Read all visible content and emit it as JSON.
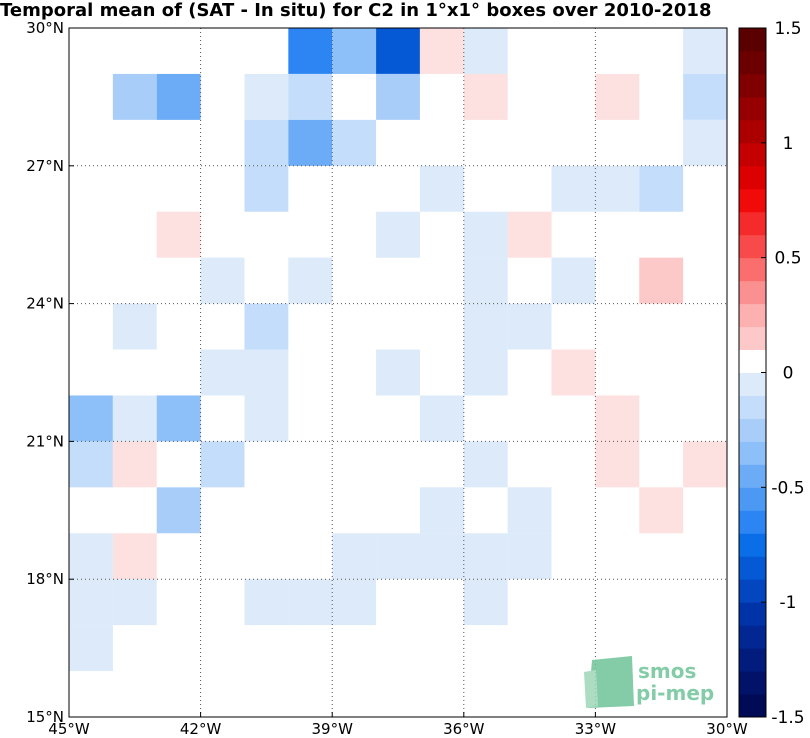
{
  "chart_data": {
    "type": "heatmap",
    "title": "Temporal mean of (SAT - In situ) for C2 in 1°x1° boxes over 2010-2018",
    "xlim": [
      -45,
      -30
    ],
    "ylim": [
      15,
      30
    ],
    "x_ticks": [
      -45,
      -42,
      -39,
      -36,
      -33,
      -30
    ],
    "x_tick_labels": [
      "45°W",
      "42°W",
      "39°W",
      "36°W",
      "33°W",
      "30°W"
    ],
    "y_ticks": [
      15,
      18,
      21,
      24,
      27,
      30
    ],
    "y_tick_labels": [
      "15°N",
      "18°N",
      "21°N",
      "24°N",
      "27°N",
      "30°N"
    ],
    "grid": true,
    "colorbar": {
      "range": [
        -1.5,
        1.5
      ],
      "step": 0.1,
      "ticks": [
        -1.5,
        -1,
        -0.5,
        0,
        0.5,
        1,
        1.5
      ],
      "tick_labels": [
        "-1.5",
        "-1",
        "-0.5",
        "0",
        "0.5",
        "1",
        "1.5"
      ],
      "placement": "right"
    },
    "cell_size_deg": 1,
    "cells": [
      {
        "lon": -40,
        "lat": 29,
        "value": -0.7
      },
      {
        "lon": -39,
        "lat": 29,
        "value": -0.4
      },
      {
        "lon": -38,
        "lat": 29,
        "value": -0.9
      },
      {
        "lon": -37,
        "lat": 29,
        "value": 0.1
      },
      {
        "lon": -36,
        "lat": 29,
        "value": -0.1
      },
      {
        "lon": -31,
        "lat": 29,
        "value": -0.1
      },
      {
        "lon": -44,
        "lat": 28,
        "value": -0.3
      },
      {
        "lon": -43,
        "lat": 28,
        "value": -0.5
      },
      {
        "lon": -41,
        "lat": 28,
        "value": -0.1
      },
      {
        "lon": -40,
        "lat": 28,
        "value": -0.2
      },
      {
        "lon": -38,
        "lat": 28,
        "value": -0.3
      },
      {
        "lon": -36,
        "lat": 28,
        "value": 0.1
      },
      {
        "lon": -33,
        "lat": 28,
        "value": 0.1
      },
      {
        "lon": -31,
        "lat": 28,
        "value": -0.2
      },
      {
        "lon": -41,
        "lat": 27,
        "value": -0.2
      },
      {
        "lon": -40,
        "lat": 27,
        "value": -0.5
      },
      {
        "lon": -39,
        "lat": 27,
        "value": -0.2
      },
      {
        "lon": -31,
        "lat": 27,
        "value": -0.1
      },
      {
        "lon": -41,
        "lat": 26,
        "value": -0.2
      },
      {
        "lon": -37,
        "lat": 26,
        "value": -0.1
      },
      {
        "lon": -34,
        "lat": 26,
        "value": -0.1
      },
      {
        "lon": -33,
        "lat": 26,
        "value": -0.1
      },
      {
        "lon": -32,
        "lat": 26,
        "value": -0.2
      },
      {
        "lon": -43,
        "lat": 25,
        "value": 0.1
      },
      {
        "lon": -38,
        "lat": 25,
        "value": -0.1
      },
      {
        "lon": -36,
        "lat": 25,
        "value": -0.1
      },
      {
        "lon": -35,
        "lat": 25,
        "value": 0.1
      },
      {
        "lon": -42,
        "lat": 24,
        "value": -0.1
      },
      {
        "lon": -40,
        "lat": 24,
        "value": -0.1
      },
      {
        "lon": -36,
        "lat": 24,
        "value": -0.1
      },
      {
        "lon": -34,
        "lat": 24,
        "value": -0.1
      },
      {
        "lon": -32,
        "lat": 24,
        "value": 0.2
      },
      {
        "lon": -44,
        "lat": 23,
        "value": -0.1
      },
      {
        "lon": -41,
        "lat": 23,
        "value": -0.2
      },
      {
        "lon": -36,
        "lat": 23,
        "value": -0.1
      },
      {
        "lon": -35,
        "lat": 23,
        "value": -0.1
      },
      {
        "lon": -42,
        "lat": 22,
        "value": -0.1
      },
      {
        "lon": -41,
        "lat": 22,
        "value": -0.1
      },
      {
        "lon": -38,
        "lat": 22,
        "value": -0.1
      },
      {
        "lon": -36,
        "lat": 22,
        "value": -0.1
      },
      {
        "lon": -34,
        "lat": 22,
        "value": 0.1
      },
      {
        "lon": -45,
        "lat": 21,
        "value": -0.4
      },
      {
        "lon": -44,
        "lat": 21,
        "value": -0.1
      },
      {
        "lon": -43,
        "lat": 21,
        "value": -0.4
      },
      {
        "lon": -41,
        "lat": 21,
        "value": -0.1
      },
      {
        "lon": -37,
        "lat": 21,
        "value": -0.1
      },
      {
        "lon": -33,
        "lat": 21,
        "value": 0.1
      },
      {
        "lon": -45,
        "lat": 20,
        "value": -0.2
      },
      {
        "lon": -44,
        "lat": 20,
        "value": 0.1
      },
      {
        "lon": -42,
        "lat": 20,
        "value": -0.2
      },
      {
        "lon": -36,
        "lat": 20,
        "value": -0.1
      },
      {
        "lon": -33,
        "lat": 20,
        "value": 0.1
      },
      {
        "lon": -31,
        "lat": 20,
        "value": 0.1
      },
      {
        "lon": -43,
        "lat": 19,
        "value": -0.3
      },
      {
        "lon": -37,
        "lat": 19,
        "value": -0.1
      },
      {
        "lon": -35,
        "lat": 19,
        "value": -0.1
      },
      {
        "lon": -32,
        "lat": 19,
        "value": 0.1
      },
      {
        "lon": -45,
        "lat": 18,
        "value": -0.1
      },
      {
        "lon": -44,
        "lat": 18,
        "value": 0.1
      },
      {
        "lon": -39,
        "lat": 18,
        "value": -0.1
      },
      {
        "lon": -38,
        "lat": 18,
        "value": -0.1
      },
      {
        "lon": -37,
        "lat": 18,
        "value": -0.1
      },
      {
        "lon": -36,
        "lat": 18,
        "value": -0.1
      },
      {
        "lon": -35,
        "lat": 18,
        "value": -0.1
      },
      {
        "lon": -45,
        "lat": 17,
        "value": -0.1
      },
      {
        "lon": -44,
        "lat": 17,
        "value": -0.1
      },
      {
        "lon": -41,
        "lat": 17,
        "value": -0.1
      },
      {
        "lon": -40,
        "lat": 17,
        "value": -0.1
      },
      {
        "lon": -39,
        "lat": 17,
        "value": -0.1
      },
      {
        "lon": -36,
        "lat": 17,
        "value": -0.1
      },
      {
        "lon": -45,
        "lat": 16,
        "value": -0.1
      }
    ]
  },
  "logo": {
    "line1": "smos",
    "line2": "pi-mep"
  },
  "colors": {
    "negative_scale": [
      "#dceaf9",
      "#c3ddfb",
      "#a8cdf9",
      "#8dbff8",
      "#6cacf6",
      "#4c99f4",
      "#2c85f2",
      "#0a6ee8",
      "#0659d4",
      "#0346bf",
      "#0033a8",
      "#022793",
      "#011c7d",
      "#011268",
      "#000a55"
    ],
    "positive_scale": [
      "#fde0e0",
      "#fdc8c8",
      "#fcb0b0",
      "#fb9090",
      "#fa6e6e",
      "#f84a4a",
      "#f52a2a",
      "#f00a0a",
      "#dc0000",
      "#c40000",
      "#ac0000",
      "#960000",
      "#800000",
      "#6c0000",
      "#5a0000"
    ],
    "grid": "#555555",
    "logo": "#6fc49a"
  }
}
